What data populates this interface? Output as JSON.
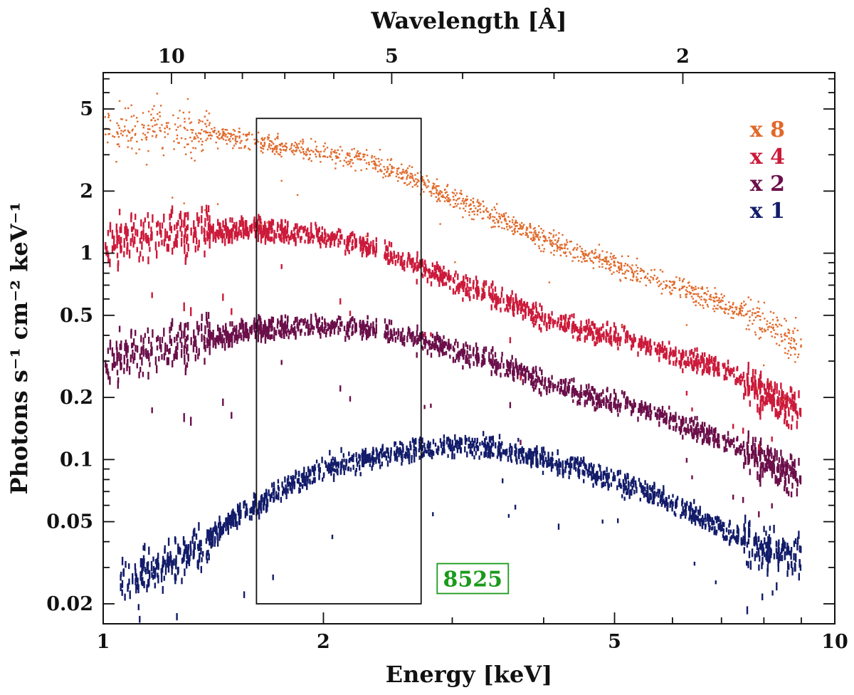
{
  "chart_data": {
    "type": "scatter",
    "title": "",
    "xlabel": "Energy [keV]",
    "ylabel": "Photons s⁻¹ cm⁻² keV⁻¹",
    "top_xlabel": "Wavelength [Å]",
    "x_scale": "log",
    "y_scale": "log",
    "xlim": [
      1,
      10
    ],
    "ylim": [
      0.016,
      7.5
    ],
    "x_ticks": [
      {
        "value": 1,
        "label": "1"
      },
      {
        "value": 2,
        "label": "2"
      },
      {
        "value": 5,
        "label": "5"
      },
      {
        "value": 10,
        "label": "10"
      }
    ],
    "y_ticks": [
      {
        "value": 0.02,
        "label": "0.02"
      },
      {
        "value": 0.05,
        "label": "0.05"
      },
      {
        "value": 0.1,
        "label": "0.1"
      },
      {
        "value": 0.2,
        "label": "0.2"
      },
      {
        "value": 0.5,
        "label": "0.5"
      },
      {
        "value": 1,
        "label": "1"
      },
      {
        "value": 2,
        "label": "2"
      },
      {
        "value": 5,
        "label": "5"
      }
    ],
    "top_ticks": [
      {
        "wavelength": 10,
        "label": "10"
      },
      {
        "wavelength": 5,
        "label": "5"
      },
      {
        "wavelength": 2,
        "label": "2"
      }
    ],
    "grid": false,
    "annotation_box": {
      "x_range": [
        1.62,
        2.72
      ],
      "y_range": [
        0.02,
        4.5
      ]
    },
    "observation_label": {
      "text": "8525",
      "x": 3.2,
      "y": 0.0265,
      "color": "#1a9a1a"
    },
    "series": [
      {
        "name": "x 8",
        "color": "#e0692a",
        "marker": "dot",
        "scale": 8,
        "x": [
          1.0,
          1.2,
          1.4,
          1.6,
          1.8,
          2.0,
          2.3,
          2.6,
          3.0,
          3.5,
          4.0,
          4.5,
          5.0,
          5.5,
          6.0,
          7.0,
          8.0,
          9.0
        ],
        "y": [
          3.9,
          4.1,
          3.8,
          3.5,
          3.25,
          3.05,
          2.8,
          2.4,
          1.85,
          1.45,
          1.18,
          1.0,
          0.88,
          0.76,
          0.7,
          0.57,
          0.46,
          0.36
        ]
      },
      {
        "name": "x 4",
        "color": "#cc1a3a",
        "marker": "bar",
        "scale": 4,
        "x": [
          1.0,
          1.2,
          1.4,
          1.6,
          1.8,
          2.0,
          2.3,
          2.6,
          3.0,
          3.5,
          4.0,
          4.5,
          5.0,
          5.5,
          6.0,
          7.0,
          8.0,
          9.0
        ],
        "y": [
          1.12,
          1.22,
          1.28,
          1.3,
          1.26,
          1.2,
          1.08,
          0.92,
          0.73,
          0.6,
          0.49,
          0.43,
          0.4,
          0.36,
          0.32,
          0.28,
          0.21,
          0.17
        ]
      },
      {
        "name": "x 2",
        "color": "#6b0f4a",
        "marker": "bar",
        "scale": 2,
        "x": [
          1.0,
          1.2,
          1.4,
          1.6,
          1.8,
          2.0,
          2.3,
          2.6,
          3.0,
          3.5,
          4.0,
          4.5,
          5.0,
          5.5,
          6.0,
          7.0,
          8.0,
          9.0
        ],
        "y": [
          0.3,
          0.34,
          0.39,
          0.42,
          0.44,
          0.44,
          0.43,
          0.4,
          0.34,
          0.29,
          0.24,
          0.21,
          0.19,
          0.175,
          0.155,
          0.125,
          0.1,
          0.08
        ]
      },
      {
        "name": "x 1",
        "color": "#131c6a",
        "marker": "bar",
        "scale": 1,
        "x": [
          1.05,
          1.2,
          1.35,
          1.5,
          1.62,
          1.8,
          2.0,
          2.3,
          2.6,
          3.0,
          3.5,
          4.0,
          4.5,
          5.0,
          5.5,
          6.0,
          7.0,
          8.0,
          9.0
        ],
        "y": [
          0.025,
          0.03,
          0.037,
          0.05,
          0.06,
          0.075,
          0.09,
          0.1,
          0.11,
          0.116,
          0.112,
          0.1,
          0.09,
          0.078,
          0.07,
          0.061,
          0.047,
          0.037,
          0.033
        ]
      }
    ]
  }
}
